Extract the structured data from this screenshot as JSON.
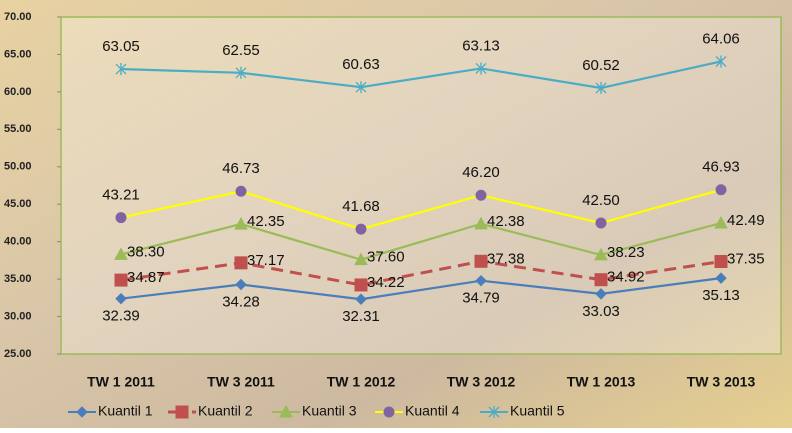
{
  "chart_data": {
    "type": "line",
    "categories": [
      "TW 1 2011",
      "TW 3 2011",
      "TW 1 2012",
      "TW 3 2012",
      "TW 1 2013",
      "TW 3 2013"
    ],
    "series": [
      {
        "name": "Kuantil 1",
        "color": "#4a7ebb",
        "marker": "diamond",
        "marker_color": "#4a7ebb",
        "dash": false,
        "values": [
          32.39,
          34.28,
          32.31,
          34.79,
          33.03,
          35.13
        ],
        "value_labels": [
          "32.39",
          "34.28",
          "32.31",
          "34.79",
          "33.03",
          "35.13"
        ]
      },
      {
        "name": "Kuantil 2",
        "color": "#c0504d",
        "marker": "square",
        "marker_color": "#c0504d",
        "dash": true,
        "values": [
          34.87,
          37.17,
          34.22,
          37.38,
          34.92,
          37.35
        ],
        "value_labels": [
          "34.87",
          "37.17",
          "34.22",
          "37.38",
          "34.92",
          "37.35"
        ]
      },
      {
        "name": "Kuantil 3",
        "color": "#9bbb59",
        "marker": "triangle",
        "marker_color": "#9bbb59",
        "dash": false,
        "values": [
          38.3,
          42.35,
          37.6,
          42.38,
          38.23,
          42.49
        ],
        "value_labels": [
          "38.30",
          "42.35",
          "37.60",
          "42.38",
          "38.23",
          "42.49"
        ]
      },
      {
        "name": "Kuantil 4",
        "color": "#ffff00",
        "marker": "circle",
        "marker_color": "#8064a2",
        "dash": false,
        "values": [
          43.21,
          46.73,
          41.68,
          46.2,
          42.5,
          46.93
        ],
        "value_labels": [
          "43.21",
          "46.73",
          "41.68",
          "46.20",
          "42.50",
          "46.93"
        ]
      },
      {
        "name": "Kuantil 5",
        "color": "#4bacc6",
        "marker": "star",
        "marker_color": "#4bacc6",
        "dash": false,
        "values": [
          63.05,
          62.55,
          60.63,
          63.13,
          60.52,
          64.06
        ],
        "value_labels": [
          "63.05",
          "62.55",
          "60.63",
          "63.13",
          "60.52",
          "64.06"
        ]
      }
    ],
    "ylim": [
      25,
      70
    ],
    "yticks": [
      {
        "value": 25,
        "label": "25.00"
      },
      {
        "value": 30,
        "label": "30.00"
      },
      {
        "value": 35,
        "label": "35.00"
      },
      {
        "value": 40,
        "label": "40.00"
      },
      {
        "value": 45,
        "label": "45.00"
      },
      {
        "value": 50,
        "label": "50.00"
      },
      {
        "value": 55,
        "label": "55.00"
      },
      {
        "value": 60,
        "label": "60.00"
      },
      {
        "value": 65,
        "label": "65.00"
      },
      {
        "value": 70,
        "label": "70.00"
      }
    ],
    "grid": false,
    "legend": "bottom"
  }
}
